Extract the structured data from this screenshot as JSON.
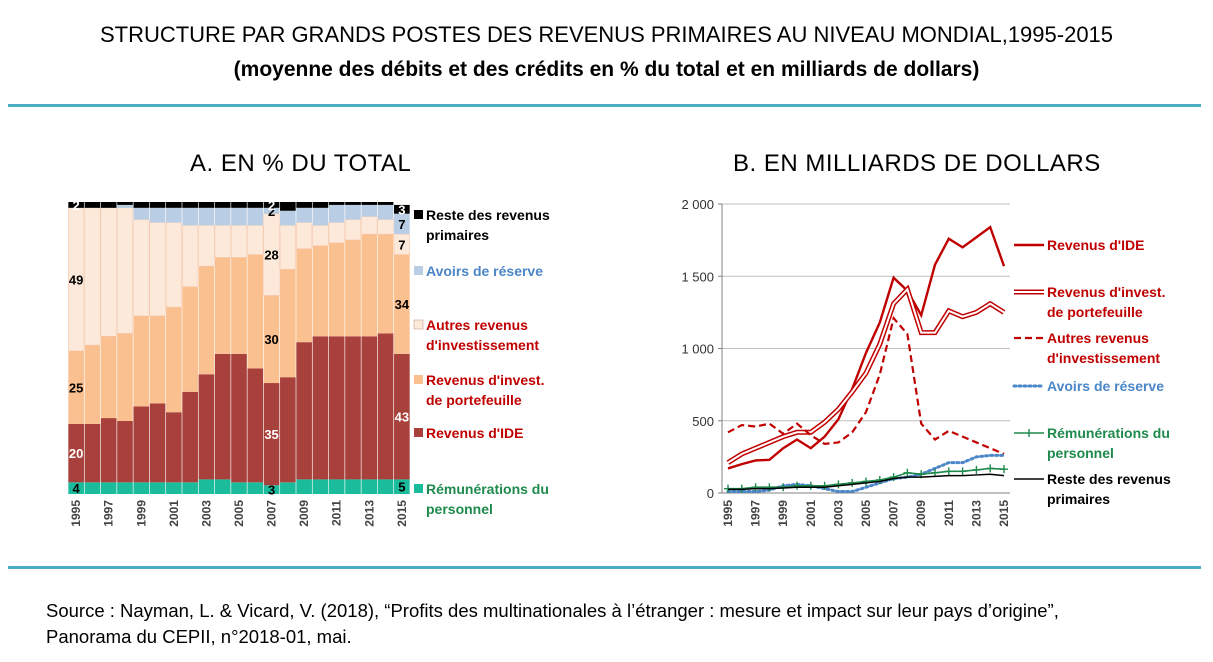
{
  "title": "STRUCTURE PAR GRANDS POSTES DES REVENUS PRIMAIRES AU NIVEAU MONDIAL,1995-2015",
  "subtitle": "(moyenne des débits et des crédits en % du total et en milliards de dollars)",
  "source": [
    "Source : Nayman, L. & Vicard, V. (2018), “Profits des multinationales à l’étranger : mesure et impact sur leur pays d’origine”,",
    "Panorama du CEPII, n°2018-01, mai."
  ],
  "colors": {
    "rule": "#4BACC6",
    "ide": "#A8403B",
    "portefeuille": "#FAC090",
    "autres": "#FDE9D9",
    "reserve": "#B9CDE5",
    "reste": "#000000",
    "remunerations": "#1ABC9C"
  },
  "chart_data": [
    {
      "type": "bar",
      "stacked": true,
      "title": "A. EN % DU TOTAL",
      "categories": [
        "1995",
        "1996",
        "1997",
        "1998",
        "1999",
        "2000",
        "2001",
        "2002",
        "2003",
        "2004",
        "2005",
        "2006",
        "2007",
        "2008",
        "2009",
        "2010",
        "2011",
        "2012",
        "2013",
        "2014",
        "2015"
      ],
      "tick_labels": [
        "1995",
        "1997",
        "1999",
        "2001",
        "2003",
        "2005",
        "2007",
        "2009",
        "2011",
        "2013",
        "2015"
      ],
      "ylim": [
        0,
        100
      ],
      "series": [
        {
          "name": "Rémunérations du personnel",
          "color": "#1ABC9C",
          "values": [
            4,
            4,
            4,
            4,
            4,
            4,
            4,
            4,
            5,
            5,
            4,
            4,
            3,
            4,
            5,
            5,
            5,
            5,
            5,
            5,
            5
          ]
        },
        {
          "name": "Revenus d'IDE",
          "color": "#A8403B",
          "values": [
            20,
            20,
            22,
            21,
            26,
            27,
            24,
            31,
            36,
            43,
            44,
            39,
            35,
            36,
            47,
            49,
            49,
            49,
            49,
            50,
            43
          ]
        },
        {
          "name": "Revenus d'invest. de portefeuille",
          "color": "#FAC090",
          "values": [
            25,
            27,
            28,
            30,
            31,
            30,
            36,
            36,
            37,
            33,
            33,
            39,
            30,
            37,
            32,
            31,
            32,
            33,
            35,
            34,
            34
          ]
        },
        {
          "name": "Autres revenus d'investissement",
          "color": "#FDE9D9",
          "values": [
            49,
            47,
            44,
            43,
            33,
            32,
            29,
            21,
            14,
            11,
            11,
            10,
            28,
            15,
            9,
            7,
            7,
            7,
            6,
            5,
            7
          ]
        },
        {
          "name": "Avoirs de réserve",
          "color": "#B9CDE5",
          "values": [
            0,
            0,
            0,
            1,
            4,
            5,
            5,
            6,
            6,
            6,
            6,
            6,
            2,
            5,
            5,
            6,
            6,
            5,
            4,
            5,
            7
          ]
        },
        {
          "name": "Reste des revenus primaires",
          "color": "#000000",
          "values": [
            2,
            2,
            2,
            1,
            2,
            2,
            2,
            2,
            2,
            2,
            2,
            2,
            2,
            3,
            2,
            2,
            1,
            1,
            1,
            1,
            3
          ]
        }
      ],
      "data_labels": [
        {
          "series": "Rémunérations du personnel",
          "category": "1995",
          "text": "4"
        },
        {
          "series": "Rémunérations du personnel",
          "category": "2007",
          "text": "3"
        },
        {
          "series": "Rémunérations du personnel",
          "category": "2015",
          "text": "5"
        },
        {
          "series": "Revenus d'IDE",
          "category": "1995",
          "text": "20"
        },
        {
          "series": "Revenus d'IDE",
          "category": "2007",
          "text": "35"
        },
        {
          "series": "Revenus d'IDE",
          "category": "2015",
          "text": "43"
        },
        {
          "series": "Revenus d'invest. de portefeuille",
          "category": "1995",
          "text": "25"
        },
        {
          "series": "Revenus d'invest. de portefeuille",
          "category": "2007",
          "text": "30"
        },
        {
          "series": "Revenus d'invest. de portefeuille",
          "category": "2015",
          "text": "34"
        },
        {
          "series": "Autres revenus d'investissement",
          "category": "1995",
          "text": "49"
        },
        {
          "series": "Autres revenus d'investissement",
          "category": "2007",
          "text": "28"
        },
        {
          "series": "Autres revenus d'investissement",
          "category": "2015",
          "text": "7"
        },
        {
          "series": "Avoirs de réserve",
          "category": "2007",
          "text": "2"
        },
        {
          "series": "Avoirs de réserve",
          "category": "2015",
          "text": "7"
        },
        {
          "series": "Reste des revenus primaires",
          "category": "1995",
          "text": "2"
        },
        {
          "series": "Reste des revenus primaires",
          "category": "2007",
          "text": "2"
        },
        {
          "series": "Reste des revenus primaires",
          "category": "2015",
          "text": "3"
        }
      ],
      "legend": [
        {
          "series": "Reste des revenus primaires",
          "lines": [
            "Reste des revenus",
            "primaires"
          ],
          "color": "#000000",
          "text_color": "#000000"
        },
        {
          "series": "Avoirs de réserve",
          "lines": [
            "Avoirs de réserve"
          ],
          "color": "#B9CDE5",
          "text_color": "#4A86C8"
        },
        {
          "series": "Autres revenus d'investissement",
          "lines": [
            "Autres revenus",
            "d'investissement"
          ],
          "color": "#FDE9D9",
          "text_color": "#C00000"
        },
        {
          "series": "Revenus d'invest. de portefeuille",
          "lines": [
            "Revenus d'invest.",
            "de portefeuille"
          ],
          "color": "#FAC090",
          "text_color": "#C00000"
        },
        {
          "series": "Revenus d'IDE",
          "lines": [
            "Revenus d'IDE"
          ],
          "color": "#A8403B",
          "text_color": "#C00000"
        },
        {
          "series": "Rémunérations du personnel",
          "lines": [
            "Rémunérations du",
            "personnel"
          ],
          "color": "#1ABC9C",
          "text_color": "#1E8A4C"
        }
      ]
    },
    {
      "type": "line",
      "title": "B. EN MILLIARDS DE DOLLARS",
      "x": [
        1995,
        1996,
        1997,
        1998,
        1999,
        2000,
        2001,
        2002,
        2003,
        2004,
        2005,
        2006,
        2007,
        2008,
        2009,
        2010,
        2011,
        2012,
        2013,
        2014,
        2015
      ],
      "tick_labels": [
        "1995",
        "1997",
        "1999",
        "2001",
        "2003",
        "2005",
        "2007",
        "2009",
        "2011",
        "2013",
        "2015"
      ],
      "ylim": [
        0,
        2000
      ],
      "yticks": [
        0,
        500,
        1000,
        1500,
        2000
      ],
      "ytick_labels": [
        "0",
        "500",
        "1 000",
        "1 500",
        "2 000"
      ],
      "series": [
        {
          "name": "Revenus d'IDE",
          "style": "solid",
          "color": "#C00000",
          "values": [
            170,
            200,
            225,
            230,
            310,
            370,
            310,
            390,
            510,
            720,
            970,
            1180,
            1490,
            1400,
            1230,
            1580,
            1760,
            1700,
            1770,
            1840,
            1570
          ]
        },
        {
          "name": "Revenus d'invest. de portefeuille",
          "style": "double",
          "color": "#C00000",
          "values": [
            210,
            270,
            310,
            350,
            390,
            420,
            420,
            490,
            580,
            700,
            830,
            1030,
            1310,
            1410,
            1110,
            1110,
            1260,
            1220,
            1250,
            1310,
            1250
          ]
        },
        {
          "name": "Autres revenus d'investissement",
          "style": "dashed",
          "color": "#C00000",
          "values": [
            420,
            470,
            460,
            480,
            410,
            480,
            400,
            340,
            350,
            420,
            560,
            820,
            1210,
            1100,
            480,
            370,
            430,
            390,
            350,
            310,
            270
          ]
        },
        {
          "name": "Avoirs de réserve",
          "style": "dotted",
          "color": "#4A86C8",
          "values": [
            10,
            10,
            10,
            20,
            50,
            60,
            50,
            30,
            10,
            10,
            40,
            70,
            100,
            110,
            130,
            170,
            210,
            210,
            250,
            260,
            260
          ]
        },
        {
          "name": "Rémunérations du personnel",
          "style": "marker",
          "color": "#1E8A4C",
          "values": [
            30,
            30,
            40,
            40,
            40,
            50,
            50,
            50,
            60,
            70,
            80,
            90,
            110,
            140,
            130,
            140,
            150,
            150,
            160,
            170,
            165
          ]
        },
        {
          "name": "Reste des revenus primaires",
          "style": "solid-thin",
          "color": "#000000",
          "values": [
            25,
            25,
            30,
            30,
            35,
            40,
            40,
            40,
            50,
            60,
            70,
            80,
            100,
            110,
            110,
            115,
            120,
            120,
            125,
            130,
            120
          ]
        }
      ],
      "legend": [
        {
          "series": "Revenus d'IDE",
          "lines": [
            "Revenus d'IDE"
          ],
          "text_color": "#C00000"
        },
        {
          "series": "Revenus d'invest. de portefeuille",
          "lines": [
            "Revenus d'invest.",
            "de portefeuille"
          ],
          "text_color": "#C00000"
        },
        {
          "series": "Autres revenus d'investissement",
          "lines": [
            "Autres revenus",
            "d'investissement"
          ],
          "text_color": "#C00000"
        },
        {
          "series": "Avoirs de réserve",
          "lines": [
            "Avoirs de réserve"
          ],
          "text_color": "#4A86C8"
        },
        {
          "series": "Rémunérations du personnel",
          "lines": [
            "Rémunérations du",
            "personnel"
          ],
          "text_color": "#1E8A4C"
        },
        {
          "series": "Reste des revenus primaires",
          "lines": [
            "Reste des revenus",
            "primaires"
          ],
          "text_color": "#000000"
        }
      ]
    }
  ]
}
